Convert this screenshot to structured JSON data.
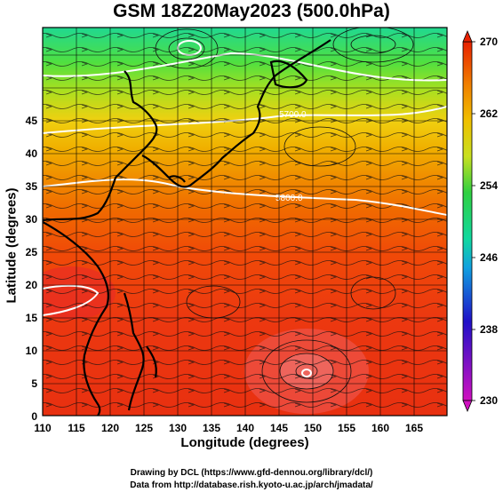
{
  "title": "GSM 18Z20May2023 (500.0hPa)",
  "axes": {
    "x": {
      "label": "Longitude (degrees)",
      "range": [
        110,
        170
      ],
      "ticks": [
        "110",
        "115",
        "120",
        "125",
        "130",
        "135",
        "140",
        "145",
        "150",
        "155",
        "160",
        "165"
      ]
    },
    "y": {
      "label": "Latitude (degrees)",
      "range": [
        0,
        50
      ],
      "ticks": [
        "0",
        "5",
        "10",
        "15",
        "20",
        "25",
        "30",
        "35",
        "40",
        "45"
      ]
    }
  },
  "colorbar": {
    "range": [
      230,
      270
    ],
    "ticks": [
      "270",
      "262",
      "254",
      "246",
      "238",
      "230"
    ],
    "colors": [
      "#d010c0",
      "#2010c8",
      "#10a0e0",
      "#10d8a0",
      "#30d040",
      "#c8e020",
      "#f0c000",
      "#f08000",
      "#e82000"
    ]
  },
  "contour_labels": [
    "5700.0",
    "5800.0"
  ],
  "credits": {
    "line1": "Drawing by DCL (https://www.gfd-dennou.org/library/dcl/)",
    "line2": "Data from http://database.rish.kyoto-u.ac.jp/arch/jmadata/"
  }
}
